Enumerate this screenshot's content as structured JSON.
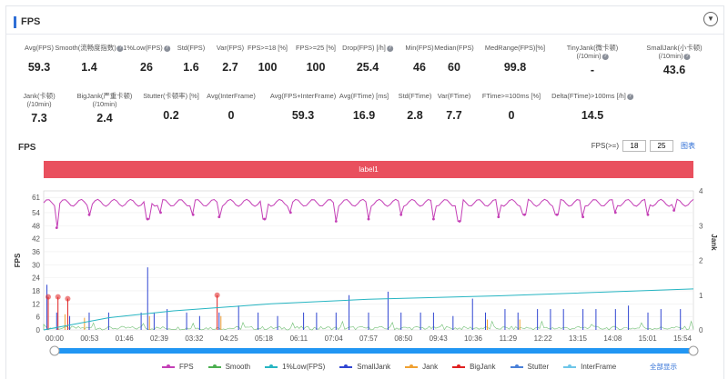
{
  "header": {
    "title": "FPS",
    "collapse_icon": "chevron-down-icon"
  },
  "metrics_row1": [
    {
      "label": "Avg(FPS)",
      "value": "59.3",
      "help": false
    },
    {
      "label": "Smooth(流畅度指数)",
      "value": "1.4",
      "help": true
    },
    {
      "label": "1%Low(FPS)",
      "value": "26",
      "help": true
    },
    {
      "label": "Std(FPS)",
      "value": "1.6",
      "help": false
    },
    {
      "label": "Var(FPS)",
      "value": "2.7",
      "help": false
    },
    {
      "label": "FPS>=18 [%]",
      "value": "100",
      "help": false
    },
    {
      "label": "FPS>=25 [%]",
      "value": "100",
      "help": false
    },
    {
      "label": "Drop(FPS) [/h]",
      "value": "25.4",
      "help": true
    },
    {
      "label": "Min(FPS)",
      "value": "46",
      "help": false
    },
    {
      "label": "Median(FPS)",
      "value": "60",
      "help": false
    },
    {
      "label": "MedRange(FPS)[%]",
      "value": "99.8",
      "help": false
    },
    {
      "label": "TinyJank(微卡顿)",
      "label2": "(/10min)",
      "value": "-",
      "help": true
    },
    {
      "label": "SmallJank(小卡顿)",
      "label2": "(/10min)",
      "value": "43.6",
      "help": true
    }
  ],
  "metrics_row2": [
    {
      "label": "Jank(卡顿)",
      "label2": "(/10min)",
      "value": "7.3",
      "help": false
    },
    {
      "label": "BigJank(严重卡顿)",
      "label2": "(/10min)",
      "value": "2.4",
      "help": false
    },
    {
      "label": "Stutter(卡顿率) [%]",
      "value": "0.2",
      "help": false
    },
    {
      "label": "Avg(InterFrame)",
      "value": "0",
      "help": false
    },
    {
      "label": "Avg(FPS+InterFrame)",
      "value": "59.3",
      "help": false
    },
    {
      "label": "Avg(FTime) [ms]",
      "value": "16.9",
      "help": false
    },
    {
      "label": "Std(FTime)",
      "value": "2.8",
      "help": false
    },
    {
      "label": "Var(FTime)",
      "value": "7.7",
      "help": false
    },
    {
      "label": "FTime>=100ms [%]",
      "value": "0",
      "help": false
    },
    {
      "label": "Delta(FTime)>100ms [/h]",
      "value": "14.5",
      "help": true
    }
  ],
  "chart_title": "FPS",
  "fps_control": {
    "label": "FPS(>=)",
    "min_value": "18",
    "max_value": "25",
    "button": "图表"
  },
  "label_band": "label1",
  "colors": {
    "fps": "#c43fb6",
    "smooth": "#4caf50",
    "low": "#26b5c2",
    "smalljank": "#3046d2",
    "jank": "#f0a030",
    "bigjank": "#e02020",
    "stutter": "#4a80d8",
    "interframe": "#6ec6e8"
  },
  "chart_data": {
    "type": "line",
    "x_ticks": [
      "00:00",
      "00:53",
      "01:46",
      "02:39",
      "03:32",
      "04:25",
      "05:18",
      "06:11",
      "07:04",
      "07:57",
      "08:50",
      "09:43",
      "10:36",
      "11:29",
      "12:22",
      "13:15",
      "14:08",
      "15:01",
      "15:54"
    ],
    "y_left_ticks": [
      0,
      6,
      12,
      18,
      24,
      30,
      36,
      42,
      48,
      54,
      61
    ],
    "y_left_label": "FPS",
    "y_right_ticks": [
      0,
      1,
      2,
      3,
      4
    ],
    "y_right_label": "Jank",
    "ylim_left": [
      0,
      64
    ],
    "ylim_right": [
      0,
      4
    ],
    "fps_baseline": 58.5,
    "fps_dips": [
      {
        "t": 0.02,
        "v": 47
      },
      {
        "t": 0.07,
        "v": 53
      },
      {
        "t": 0.16,
        "v": 51
      },
      {
        "t": 0.18,
        "v": 54
      },
      {
        "t": 0.23,
        "v": 53
      },
      {
        "t": 0.27,
        "v": 52
      },
      {
        "t": 0.34,
        "v": 51
      },
      {
        "t": 0.38,
        "v": 54
      },
      {
        "t": 0.45,
        "v": 50
      },
      {
        "t": 0.5,
        "v": 51
      },
      {
        "t": 0.55,
        "v": 53
      },
      {
        "t": 0.6,
        "v": 51
      },
      {
        "t": 0.64,
        "v": 50
      },
      {
        "t": 0.7,
        "v": 52
      },
      {
        "t": 0.74,
        "v": 53
      },
      {
        "t": 0.79,
        "v": 53
      },
      {
        "t": 0.83,
        "v": 52
      },
      {
        "t": 0.88,
        "v": 54
      },
      {
        "t": 0.93,
        "v": 53
      },
      {
        "t": 0.97,
        "v": 55
      }
    ],
    "smalljank_spikes": [
      {
        "t": 0.005,
        "v": 1.3
      },
      {
        "t": 0.02,
        "v": 0.5
      },
      {
        "t": 0.04,
        "v": 0.4
      },
      {
        "t": 0.07,
        "v": 0.5
      },
      {
        "t": 0.1,
        "v": 0.5
      },
      {
        "t": 0.15,
        "v": 0.5
      },
      {
        "t": 0.16,
        "v": 1.8
      },
      {
        "t": 0.17,
        "v": 0.5
      },
      {
        "t": 0.19,
        "v": 0.6
      },
      {
        "t": 0.22,
        "v": 0.5
      },
      {
        "t": 0.24,
        "v": 0.4
      },
      {
        "t": 0.27,
        "v": 0.5
      },
      {
        "t": 0.3,
        "v": 0.7
      },
      {
        "t": 0.33,
        "v": 0.5
      },
      {
        "t": 0.36,
        "v": 0.4
      },
      {
        "t": 0.4,
        "v": 0.5
      },
      {
        "t": 0.42,
        "v": 0.5
      },
      {
        "t": 0.45,
        "v": 0.5
      },
      {
        "t": 0.47,
        "v": 1.0
      },
      {
        "t": 0.5,
        "v": 0.5
      },
      {
        "t": 0.53,
        "v": 1.1
      },
      {
        "t": 0.55,
        "v": 0.5
      },
      {
        "t": 0.58,
        "v": 0.5
      },
      {
        "t": 0.6,
        "v": 0.5
      },
      {
        "t": 0.63,
        "v": 0.4
      },
      {
        "t": 0.66,
        "v": 0.9
      },
      {
        "t": 0.68,
        "v": 0.5
      },
      {
        "t": 0.71,
        "v": 0.6
      },
      {
        "t": 0.73,
        "v": 0.5
      },
      {
        "t": 0.76,
        "v": 0.6
      },
      {
        "t": 0.78,
        "v": 0.6
      },
      {
        "t": 0.8,
        "v": 0.6
      },
      {
        "t": 0.83,
        "v": 0.6
      },
      {
        "t": 0.85,
        "v": 0.6
      },
      {
        "t": 0.88,
        "v": 0.6
      },
      {
        "t": 0.9,
        "v": 0.7
      },
      {
        "t": 0.93,
        "v": 0.5
      },
      {
        "t": 0.95,
        "v": 0.6
      },
      {
        "t": 0.98,
        "v": 0.6
      }
    ],
    "jank_spikes": [
      {
        "t": 0.03,
        "v": 0.45
      },
      {
        "t": 0.06,
        "v": 0.35
      },
      {
        "t": 0.16,
        "v": 0.4
      },
      {
        "t": 0.27,
        "v": 0.4
      },
      {
        "t": 0.68,
        "v": 0.3
      },
      {
        "t": 0.73,
        "v": 0.3
      }
    ],
    "bigjank_points": [
      {
        "t": 0.0,
        "v": 0.95
      },
      {
        "t": 0.015,
        "v": 0.95
      },
      {
        "t": 0.03,
        "v": 0.9
      },
      {
        "t": 0.26,
        "v": 1.0
      }
    ],
    "low_curve": [
      {
        "t": 0.0,
        "v": 0.0
      },
      {
        "t": 0.1,
        "v": 0.35
      },
      {
        "t": 0.2,
        "v": 0.55
      },
      {
        "t": 0.35,
        "v": 0.75
      },
      {
        "t": 0.5,
        "v": 0.88
      },
      {
        "t": 0.7,
        "v": 0.98
      },
      {
        "t": 1.0,
        "v": 1.18
      }
    ],
    "legend": [
      "FPS",
      "Smooth",
      "1%Low(FPS)",
      "SmallJank",
      "Jank",
      "BigJank",
      "Stutter",
      "InterFrame"
    ]
  },
  "footer": {
    "link": "全部显示"
  }
}
